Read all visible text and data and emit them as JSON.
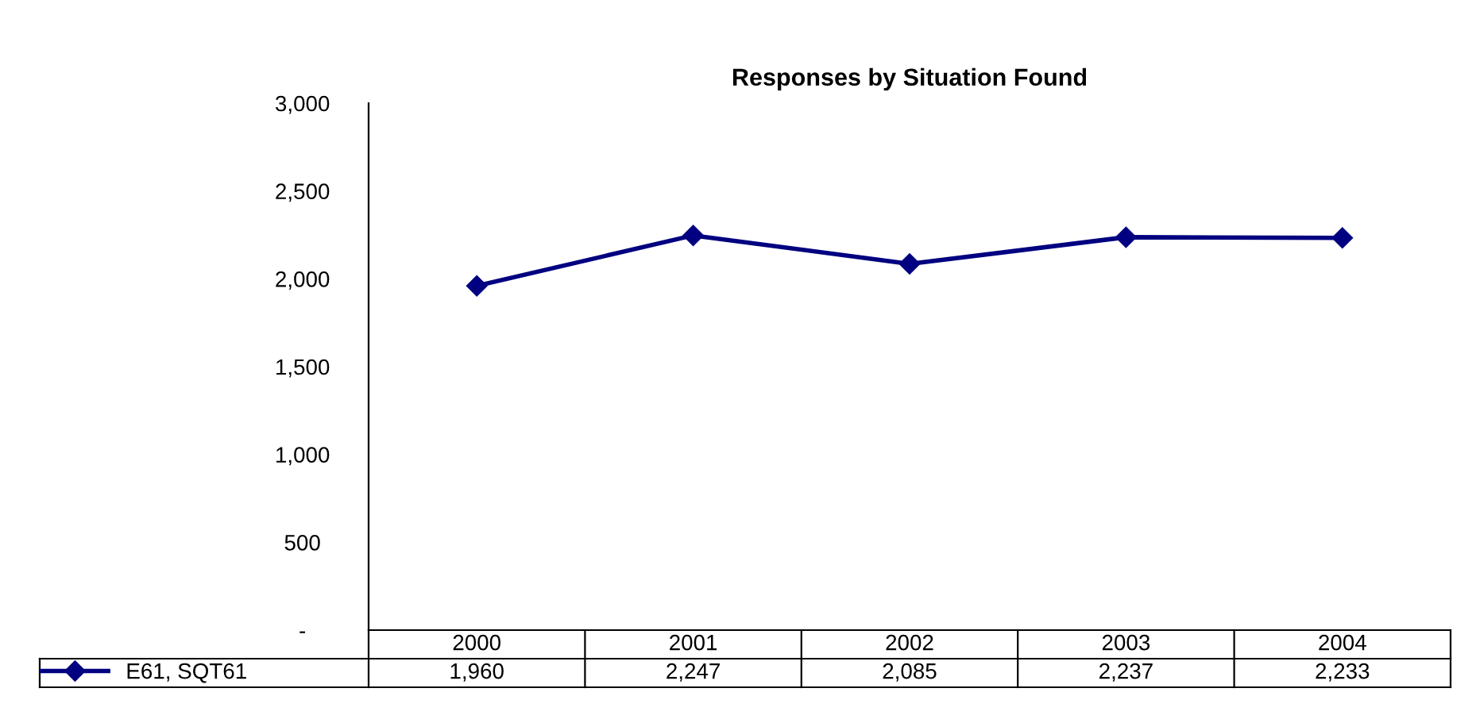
{
  "chart_data": {
    "type": "line",
    "title": "Responses by Situation Found",
    "categories": [
      "2000",
      "2001",
      "2002",
      "2003",
      "2004"
    ],
    "series": [
      {
        "name": "E61, SQT61",
        "color": "#000080",
        "values": [
          1960,
          2247,
          2085,
          2237,
          2233
        ],
        "value_labels": [
          "1,960",
          "2,247",
          "2,085",
          "2,237",
          "2,233"
        ]
      }
    ],
    "ylim": [
      0,
      3000
    ],
    "yticks": [
      {
        "value": 0,
        "label": "-"
      },
      {
        "value": 500,
        "label": "500"
      },
      {
        "value": 1000,
        "label": "1,000"
      },
      {
        "value": 1500,
        "label": "1,500"
      },
      {
        "value": 2000,
        "label": "2,000"
      },
      {
        "value": 2500,
        "label": "2,500"
      },
      {
        "value": 3000,
        "label": "3,000"
      }
    ],
    "marker": "diamond",
    "line_style": "solid",
    "grid": false,
    "legend": "bottom left"
  }
}
